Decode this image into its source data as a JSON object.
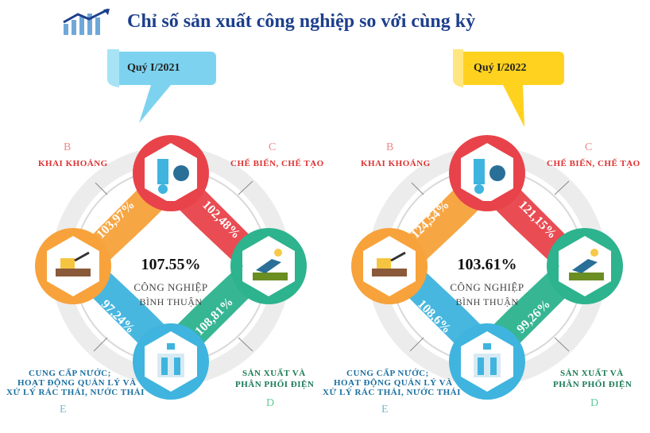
{
  "title": "Chỉ số sản xuất công nghiệp so với cùng kỳ",
  "colors": {
    "title": "#1d3f8c",
    "red": "#e8434a",
    "orange": "#f7a23b",
    "green": "#2db38e",
    "blue": "#3fb4de",
    "q1": "#7dd3ef",
    "q2": "#ffd21f"
  },
  "panels": [
    {
      "quarter": "Quý I/2021",
      "center_value": "107.55%",
      "center_line1": "CÔNG NGHIỆP",
      "center_line2": "BÌNH THUẬN",
      "b_letter": "B",
      "b_label": "KHAI KHOÁNG",
      "b_value": "103,97%",
      "c_letter": "C",
      "c_label": "CHẾ BIẾN, CHẾ TẠO",
      "c_value": "102,48%",
      "d_letter": "D",
      "d_label1": "SẢN XUẤT VÀ",
      "d_label2": "PHÂN PHỐI ĐIỆN",
      "d_value": "108,81%",
      "e_letter": "E",
      "e_label1": "CUNG CẤP NƯỚC;",
      "e_label2": "HOẠT ĐỘNG QUẢN LÝ VÀ",
      "e_label3": "XỬ LÝ RÁC THẢI, NƯỚC THẢI",
      "e_value": "97,24%"
    },
    {
      "quarter": "Quý I/2022",
      "center_value": "103.61%",
      "center_line1": "CÔNG NGHIỆP",
      "center_line2": "BÌNH THUẬN",
      "b_letter": "B",
      "b_label": "KHAI KHOÁNG",
      "b_value": "124,54%",
      "c_letter": "C",
      "c_label": "CHẾ BIẾN, CHẾ TẠO",
      "c_value": "121,15%",
      "d_letter": "D",
      "d_label1": "SẢN XUẤT VÀ",
      "d_label2": "PHÂN PHỐI ĐIỆN",
      "d_value": "99,26%",
      "e_letter": "E",
      "e_label1": "CUNG CẤP NƯỚC;",
      "e_label2": "HOẠT ĐỘNG QUẢN LÝ VÀ",
      "e_label3": "XỬ LÝ RÁC THẢI, NƯỚC THẢI",
      "e_value": "108,6%"
    }
  ]
}
